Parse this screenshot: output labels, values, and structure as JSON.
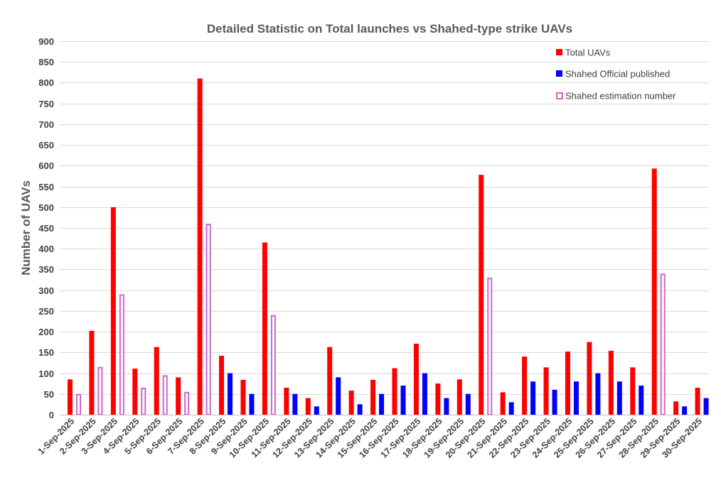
{
  "chart_data": {
    "type": "bar",
    "title": "Detailed Statistic on Total launches vs Shahed-type strike UAVs",
    "xlabel": "",
    "ylabel": "Number of UAVs",
    "ylim": [
      0,
      900
    ],
    "yticks": [
      0,
      50,
      100,
      150,
      200,
      250,
      300,
      350,
      400,
      450,
      500,
      550,
      600,
      650,
      700,
      750,
      800,
      850,
      900
    ],
    "grid": true,
    "legend_position": "top-right",
    "categories": [
      "1-Sep-2025",
      "2-Sep-2025",
      "3-Sep-2025",
      "4-Sep-2025",
      "5-Sep-2025",
      "6-Sep-2025",
      "7-Sep-2025",
      "8-Sep-2025",
      "9-Sep-2025",
      "10-Sep-2025",
      "11-Sep-2025",
      "12-Sep-2025",
      "13-Sep-2025",
      "14-Sep-2025",
      "15-Sep-2025",
      "16-Sep-2025",
      "17-Sep-2025",
      "18-Sep-2025",
      "19-Sep-2025",
      "20-Sep-2025",
      "21-Sep-2025",
      "22-Sep-2025",
      "23-Sep-2025",
      "24-Sep-2025",
      "25-Sep-2025",
      "26-Sep-2025",
      "27-Sep-2025",
      "28-Sep-2025",
      "29-Sep-2025",
      "30-Sep-2025"
    ],
    "series": [
      {
        "name": "Total UAVs",
        "color": "#ff0000",
        "style": "filled",
        "values": [
          85,
          202,
          500,
          111,
          163,
          90,
          810,
          142,
          84,
          415,
          65,
          40,
          163,
          58,
          84,
          112,
          171,
          75,
          85,
          578,
          54,
          140,
          114,
          152,
          175,
          154,
          114,
          593,
          32,
          65
        ]
      },
      {
        "name": "Shahed Official published",
        "color": "#0000ff",
        "style": "filled",
        "values": [
          null,
          null,
          null,
          null,
          null,
          null,
          null,
          100,
          50,
          null,
          50,
          20,
          90,
          25,
          50,
          70,
          100,
          40,
          50,
          null,
          30,
          80,
          60,
          80,
          100,
          80,
          70,
          null,
          20,
          40
        ]
      },
      {
        "name": "Shahed estimation number",
        "color": "#cc66cc",
        "style": "outline",
        "values": [
          50,
          115,
          290,
          65,
          95,
          55,
          460,
          null,
          null,
          240,
          null,
          null,
          null,
          null,
          null,
          null,
          null,
          null,
          null,
          330,
          null,
          null,
          null,
          null,
          null,
          null,
          null,
          340,
          null,
          null
        ]
      }
    ]
  }
}
